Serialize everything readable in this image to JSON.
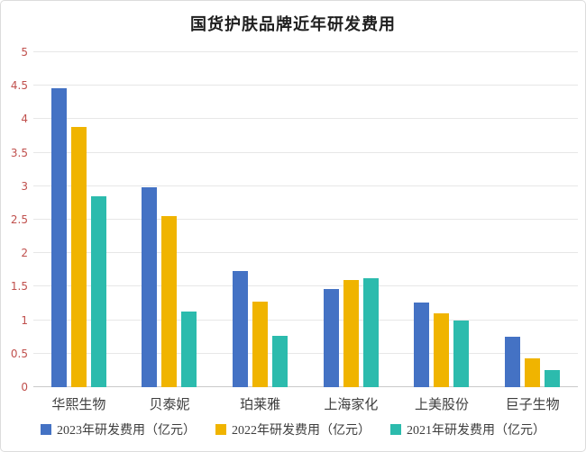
{
  "frame": {
    "background": "#ffffff",
    "border_color": "#dcdcdc"
  },
  "chart_data": {
    "type": "bar",
    "title": "国货护肤品牌近年研发费用",
    "categories": [
      "华熙生物",
      "贝泰妮",
      "珀莱雅",
      "上海家化",
      "上美股份",
      "巨子生物"
    ],
    "series": [
      {
        "name": "2023年研发费用（亿元）",
        "color": "#4472C4",
        "values": [
          4.46,
          2.99,
          1.74,
          1.47,
          1.26,
          0.75
        ]
      },
      {
        "name": "2022年研发费用（亿元）",
        "color": "#F0B400",
        "values": [
          3.88,
          2.55,
          1.28,
          1.6,
          1.1,
          0.43
        ]
      },
      {
        "name": "2021年研发费用（亿元）",
        "color": "#2CBBAD",
        "values": [
          2.85,
          1.13,
          0.77,
          1.63,
          0.99,
          0.25
        ]
      }
    ],
    "xlabel": "",
    "ylabel": "",
    "ylim": [
      0,
      5
    ],
    "ytick_labels": [
      "0",
      "0.5",
      "1",
      "1.5",
      "2",
      "2.5",
      "3",
      "3.5",
      "4",
      "4.5",
      "5"
    ],
    "grid": true,
    "legend_position": "bottom",
    "axis_tick_color": "#C0504D",
    "gridline_color": "#e7e7e7",
    "baseline_color": "#c9c9c9"
  }
}
